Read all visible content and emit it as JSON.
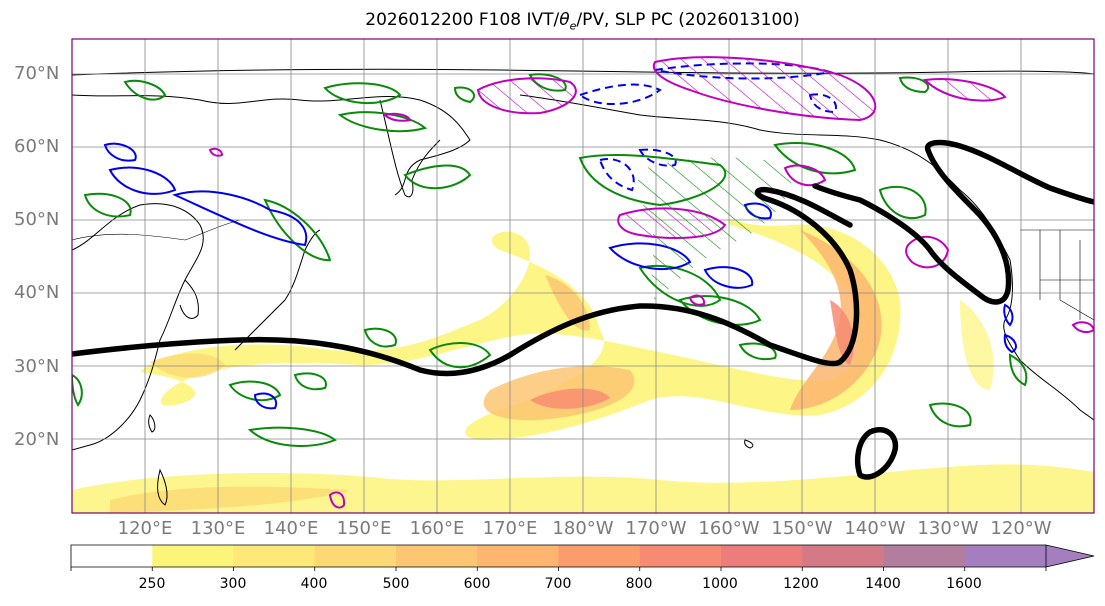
{
  "title": "2026012200 F108 IVT/θe/PV, SLP PC (2026013100)",
  "title_parts": {
    "pre": "2026012200 F108 IVT/",
    "theta": "θ",
    "sub": "e",
    "post": "/PV, SLP PC (2026013100)"
  },
  "lat_labels": [
    "70°N",
    "60°N",
    "50°N",
    "40°N",
    "30°N",
    "20°N"
  ],
  "lon_labels": [
    "120°E",
    "130°E",
    "140°E",
    "150°E",
    "160°E",
    "170°E",
    "180°W",
    "170°W",
    "160°W",
    "150°W",
    "140°W",
    "130°W",
    "120°W"
  ],
  "colorbar": {
    "ticks": [
      "250",
      "300",
      "400",
      "500",
      "600",
      "700",
      "800",
      "1000",
      "1200",
      "1400",
      "1600"
    ],
    "colors": [
      "#ffffff",
      "#fdf57a",
      "#fde878",
      "#fdd976",
      "#fdc673",
      "#fdb56f",
      "#fb9c6c",
      "#f78a72",
      "#ec7d7a",
      "#d47a86",
      "#b37d9e",
      "#a57ec0"
    ]
  },
  "colors": {
    "slp": "#000000",
    "theta_e_pos": "#0a8a0a",
    "theta_e_neg": "#0000ee",
    "pv": "#c000c0",
    "grid": "#888888",
    "coast": "#000000",
    "border": "#7a007a"
  }
}
